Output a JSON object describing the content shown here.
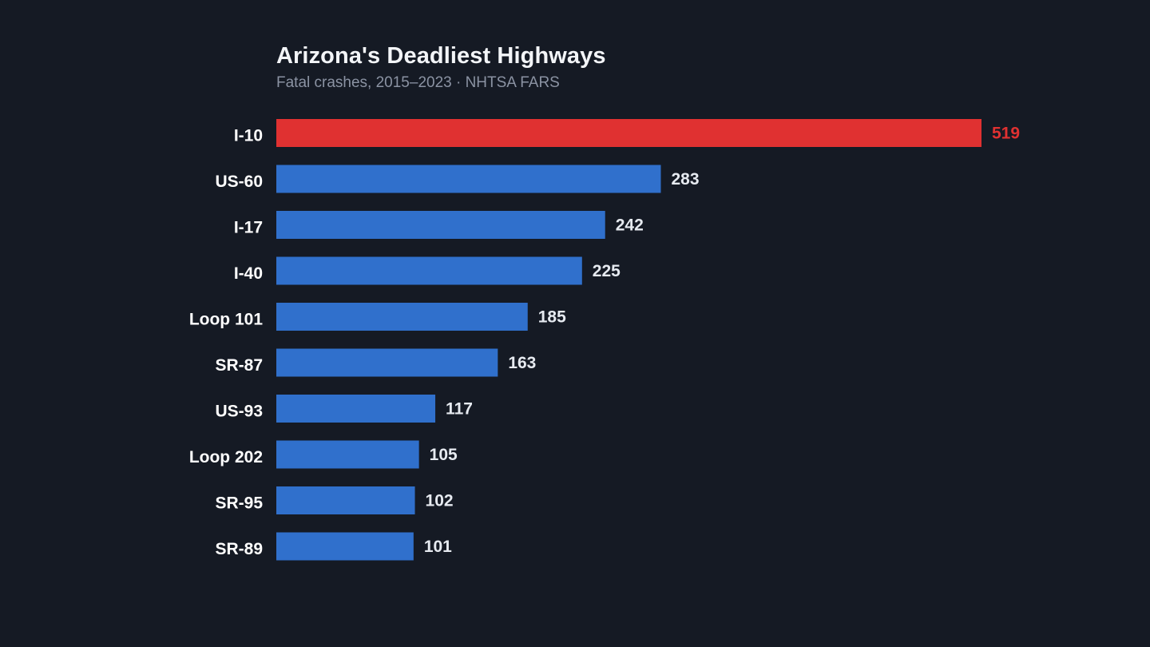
{
  "chart_data": {
    "type": "bar",
    "orientation": "horizontal",
    "title": "Arizona's Deadliest Highways",
    "subtitle": "Fatal crashes, 2015–2023 · NHTSA FARS",
    "xlabel": "",
    "ylabel": "",
    "categories": [
      "I-10",
      "US-60",
      "I-17",
      "I-40",
      "Loop 101",
      "SR-87",
      "US-93",
      "Loop 202",
      "SR-95",
      "SR-89"
    ],
    "values": [
      519,
      283,
      242,
      225,
      185,
      163,
      117,
      105,
      102,
      101
    ],
    "xlim": [
      0,
      519
    ],
    "grid": false,
    "legend": "none",
    "colors": {
      "highlight": "#e03131",
      "default": "#3070cc",
      "value_label_default": "#e6eaf0",
      "value_label_highlight": "#e03131"
    },
    "highlight_index": 0
  }
}
